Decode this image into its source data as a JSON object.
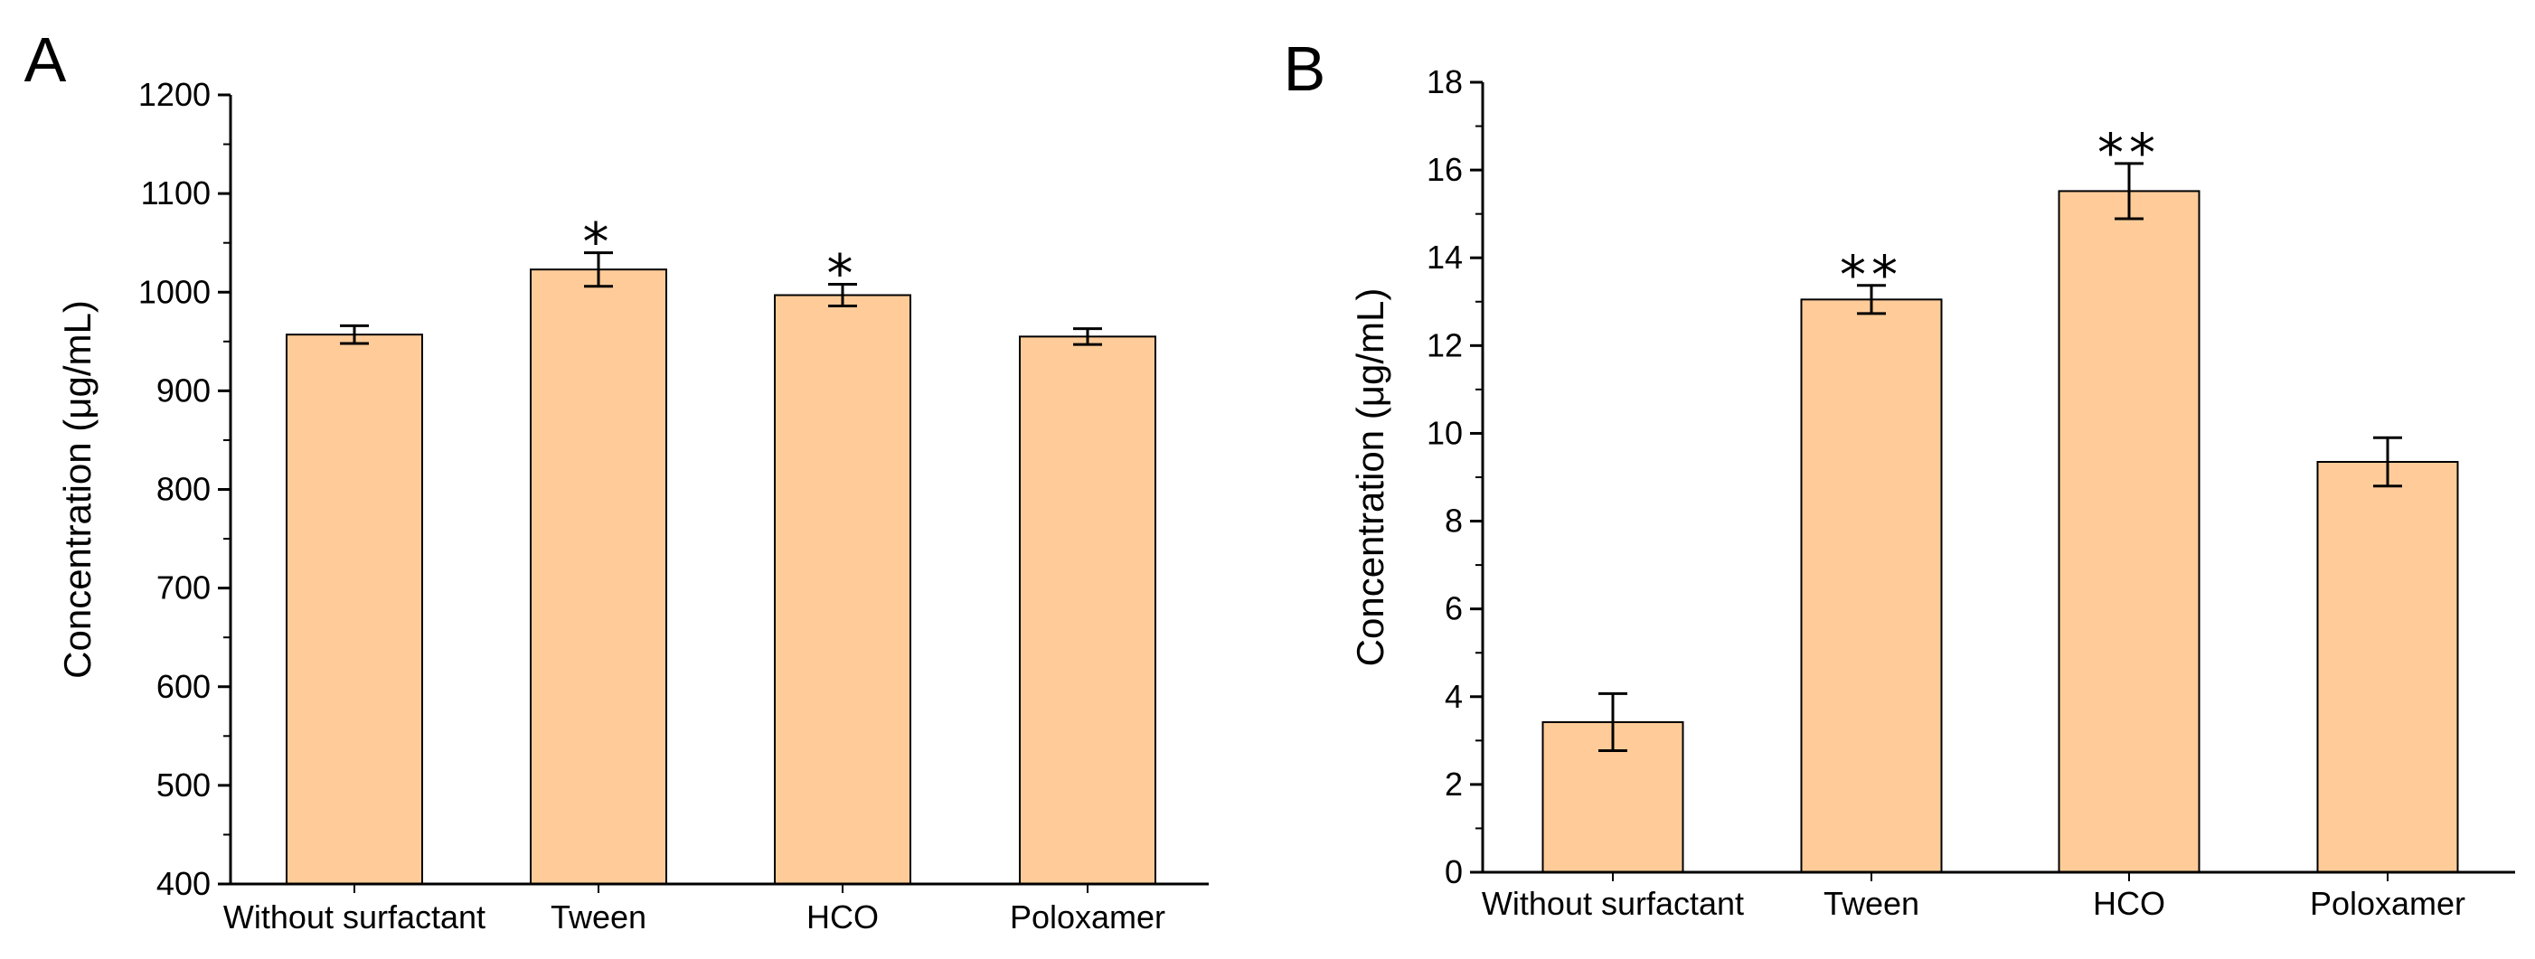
{
  "chart_data": [
    {
      "panel": "A",
      "type": "bar",
      "title": "",
      "xlabel": "",
      "ylabel": "Concentration (μg/mL)",
      "ylim": [
        400,
        1200
      ],
      "yticks": [
        400,
        500,
        600,
        700,
        800,
        900,
        1000,
        1100,
        1200
      ],
      "categories": [
        "Without surfactant",
        "Tween",
        "HCO",
        "Poloxamer"
      ],
      "values": [
        957,
        1023,
        997,
        955
      ],
      "errors": [
        9,
        17,
        11,
        8
      ],
      "significance": [
        "",
        "*",
        "*",
        ""
      ],
      "bar_color": "#FFCC99",
      "grid": false
    },
    {
      "panel": "B",
      "type": "bar",
      "title": "",
      "xlabel": "",
      "ylabel": "Concentration (μg/mL)",
      "ylim": [
        0,
        18
      ],
      "yticks": [
        0,
        2,
        4,
        6,
        8,
        10,
        12,
        14,
        16,
        18
      ],
      "categories": [
        "Without surfactant",
        "Tween",
        "HCO",
        "Poloxamer"
      ],
      "values": [
        3.42,
        13.05,
        15.52,
        9.35
      ],
      "errors": [
        0.65,
        0.32,
        0.63,
        0.55
      ],
      "significance": [
        "",
        "**",
        "**",
        ""
      ],
      "bar_color": "#FFCC99",
      "grid": false
    }
  ]
}
